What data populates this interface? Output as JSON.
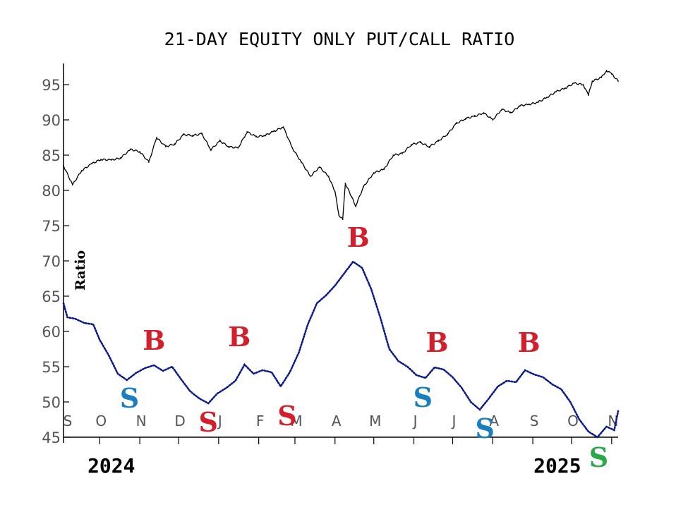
{
  "chart_data": {
    "type": "line",
    "title": "21-DAY EQUITY ONLY PUT/CALL RATIO",
    "ylabel": "Ratio",
    "ylim": [
      45,
      98
    ],
    "yticks": [
      45,
      50,
      55,
      60,
      65,
      70,
      75,
      80,
      85,
      90,
      95
    ],
    "x_start": "2024-09-03",
    "x_end": "2025-11-06",
    "month_ticks": [
      {
        "label": "S",
        "date": "2024-09-01"
      },
      {
        "label": "O",
        "date": "2024-10-01"
      },
      {
        "label": "N",
        "date": "2024-11-01"
      },
      {
        "label": "D",
        "date": "2024-12-01"
      },
      {
        "label": "J",
        "date": "2025-01-01"
      },
      {
        "label": "F",
        "date": "2025-02-01"
      },
      {
        "label": "M",
        "date": "2025-03-01"
      },
      {
        "label": "A",
        "date": "2025-04-01"
      },
      {
        "label": "M",
        "date": "2025-05-01"
      },
      {
        "label": "J",
        "date": "2025-06-01"
      },
      {
        "label": "J",
        "date": "2025-07-01"
      },
      {
        "label": "A",
        "date": "2025-08-01"
      },
      {
        "label": "S",
        "date": "2025-09-01"
      },
      {
        "label": "O",
        "date": "2025-10-01"
      },
      {
        "label": "N",
        "date": "2025-11-01"
      }
    ],
    "year_labels": [
      {
        "label": "2024",
        "date": "2024-10-10"
      },
      {
        "label": "2025",
        "date": "2025-09-20"
      }
    ],
    "series": [
      {
        "color": "#000000",
        "style": "line",
        "points": [
          [
            "2024-09-03",
            83.5
          ],
          [
            "2024-09-10",
            80.8
          ],
          [
            "2024-09-17",
            82.8
          ],
          [
            "2024-09-25",
            83.8
          ],
          [
            "2024-10-02",
            84.4
          ],
          [
            "2024-10-10",
            84.3
          ],
          [
            "2024-10-17",
            84.6
          ],
          [
            "2024-10-25",
            85.8
          ],
          [
            "2024-11-01",
            85.5
          ],
          [
            "2024-11-08",
            84.0
          ],
          [
            "2024-11-14",
            87.5
          ],
          [
            "2024-11-21",
            86.2
          ],
          [
            "2024-11-28",
            86.6
          ],
          [
            "2024-12-05",
            87.9
          ],
          [
            "2024-12-12",
            87.8
          ],
          [
            "2024-12-19",
            88.0
          ],
          [
            "2024-12-26",
            85.8
          ],
          [
            "2025-01-02",
            87.0
          ],
          [
            "2025-01-09",
            86.2
          ],
          [
            "2025-01-16",
            86.0
          ],
          [
            "2025-01-23",
            88.3
          ],
          [
            "2025-01-30",
            87.6
          ],
          [
            "2025-02-06",
            87.8
          ],
          [
            "2025-02-13",
            88.4
          ],
          [
            "2025-02-20",
            89.0
          ],
          [
            "2025-02-27",
            86.0
          ],
          [
            "2025-03-06",
            84.0
          ],
          [
            "2025-03-13",
            82.0
          ],
          [
            "2025-03-20",
            83.3
          ],
          [
            "2025-03-27",
            82.0
          ],
          [
            "2025-04-01",
            79.8
          ],
          [
            "2025-04-04",
            76.5
          ],
          [
            "2025-04-07",
            75.9
          ],
          [
            "2025-04-09",
            81.0
          ],
          [
            "2025-04-14",
            79.0
          ],
          [
            "2025-04-17",
            77.8
          ],
          [
            "2025-04-23",
            80.5
          ],
          [
            "2025-05-01",
            82.5
          ],
          [
            "2025-05-09",
            83.0
          ],
          [
            "2025-05-16",
            85.0
          ],
          [
            "2025-05-23",
            85.2
          ],
          [
            "2025-05-30",
            86.5
          ],
          [
            "2025-06-06",
            86.8
          ],
          [
            "2025-06-13",
            86.2
          ],
          [
            "2025-06-20",
            87.0
          ],
          [
            "2025-06-27",
            88.0
          ],
          [
            "2025-07-04",
            89.5
          ],
          [
            "2025-07-11",
            90.2
          ],
          [
            "2025-07-18",
            90.5
          ],
          [
            "2025-07-25",
            91.0
          ],
          [
            "2025-08-01",
            90.0
          ],
          [
            "2025-08-08",
            91.5
          ],
          [
            "2025-08-15",
            91.0
          ],
          [
            "2025-08-22",
            92.0
          ],
          [
            "2025-08-29",
            92.2
          ],
          [
            "2025-09-05",
            92.5
          ],
          [
            "2025-09-12",
            93.2
          ],
          [
            "2025-09-19",
            94.0
          ],
          [
            "2025-09-26",
            94.5
          ],
          [
            "2025-10-03",
            95.2
          ],
          [
            "2025-10-10",
            95.0
          ],
          [
            "2025-10-14",
            93.5
          ],
          [
            "2025-10-17",
            95.5
          ],
          [
            "2025-10-24",
            96.0
          ],
          [
            "2025-10-28",
            97.0
          ],
          [
            "2025-11-01",
            96.5
          ],
          [
            "2025-11-06",
            95.5
          ]
        ]
      },
      {
        "color": "#0a1a8c",
        "style": "dotted",
        "points": [
          [
            "2024-09-03",
            64.0
          ],
          [
            "2024-09-06",
            62.0
          ],
          [
            "2024-09-12",
            61.8
          ],
          [
            "2024-09-19",
            61.2
          ],
          [
            "2024-09-26",
            61.0
          ],
          [
            "2024-10-01",
            58.8
          ],
          [
            "2024-10-08",
            56.6
          ],
          [
            "2024-10-15",
            54.0
          ],
          [
            "2024-10-22",
            53.1
          ],
          [
            "2024-10-29",
            54.1
          ],
          [
            "2024-11-05",
            54.8
          ],
          [
            "2024-11-12",
            55.2
          ],
          [
            "2024-11-19",
            54.4
          ],
          [
            "2024-11-26",
            55.0
          ],
          [
            "2024-12-03",
            53.2
          ],
          [
            "2024-12-10",
            51.5
          ],
          [
            "2024-12-17",
            50.5
          ],
          [
            "2024-12-24",
            49.8
          ],
          [
            "2024-12-31",
            51.2
          ],
          [
            "2025-01-07",
            52.0
          ],
          [
            "2025-01-14",
            53.0
          ],
          [
            "2025-01-21",
            55.3
          ],
          [
            "2025-01-28",
            54.0
          ],
          [
            "2025-02-04",
            54.5
          ],
          [
            "2025-02-11",
            54.2
          ],
          [
            "2025-02-18",
            52.2
          ],
          [
            "2025-02-25",
            54.2
          ],
          [
            "2025-03-04",
            57.0
          ],
          [
            "2025-03-11",
            61.0
          ],
          [
            "2025-03-18",
            64.0
          ],
          [
            "2025-03-25",
            65.1
          ],
          [
            "2025-04-01",
            66.5
          ],
          [
            "2025-04-08",
            68.2
          ],
          [
            "2025-04-15",
            69.9
          ],
          [
            "2025-04-22",
            69.0
          ],
          [
            "2025-04-29",
            66.0
          ],
          [
            "2025-05-06",
            62.0
          ],
          [
            "2025-05-13",
            57.5
          ],
          [
            "2025-05-20",
            55.8
          ],
          [
            "2025-05-27",
            55.0
          ],
          [
            "2025-06-03",
            53.8
          ],
          [
            "2025-06-10",
            53.4
          ],
          [
            "2025-06-17",
            54.9
          ],
          [
            "2025-06-24",
            54.6
          ],
          [
            "2025-07-01",
            53.5
          ],
          [
            "2025-07-08",
            52.0
          ],
          [
            "2025-07-15",
            50.0
          ],
          [
            "2025-07-22",
            48.9
          ],
          [
            "2025-07-29",
            50.5
          ],
          [
            "2025-08-05",
            52.2
          ],
          [
            "2025-08-12",
            53.0
          ],
          [
            "2025-08-19",
            52.8
          ],
          [
            "2025-08-26",
            54.5
          ],
          [
            "2025-09-02",
            53.9
          ],
          [
            "2025-09-09",
            53.5
          ],
          [
            "2025-09-16",
            52.5
          ],
          [
            "2025-09-23",
            51.8
          ],
          [
            "2025-09-30",
            50.0
          ],
          [
            "2025-10-07",
            47.5
          ],
          [
            "2025-10-14",
            45.8
          ],
          [
            "2025-10-21",
            45.0
          ],
          [
            "2025-10-28",
            46.5
          ],
          [
            "2025-11-03",
            46.0
          ],
          [
            "2025-11-06",
            48.7
          ]
        ]
      }
    ],
    "signals": [
      {
        "label": "S",
        "date": "2024-10-24",
        "y": 49.2,
        "color": "#1a7fbf"
      },
      {
        "label": "B",
        "date": "2024-11-12",
        "y": 57.4,
        "color": "#d21f2b"
      },
      {
        "label": "S",
        "date": "2024-12-24",
        "y": 45.8,
        "color": "#d21f2b"
      },
      {
        "label": "B",
        "date": "2025-01-17",
        "y": 57.9,
        "color": "#d21f2b"
      },
      {
        "label": "S",
        "date": "2025-02-23",
        "y": 46.7,
        "color": "#d21f2b"
      },
      {
        "label": "B",
        "date": "2025-04-19",
        "y": 72.0,
        "color": "#d21f2b"
      },
      {
        "label": "S",
        "date": "2025-06-08",
        "y": 49.3,
        "color": "#1a7fbf"
      },
      {
        "label": "B",
        "date": "2025-06-19",
        "y": 57.1,
        "color": "#d21f2b"
      },
      {
        "label": "S",
        "date": "2025-07-26",
        "y": 44.9,
        "color": "#1a7fbf"
      },
      {
        "label": "B",
        "date": "2025-08-29",
        "y": 57.1,
        "color": "#d21f2b"
      },
      {
        "label": "S",
        "date": "2025-10-22",
        "y": 40.8,
        "color": "#2aa84a"
      }
    ]
  }
}
